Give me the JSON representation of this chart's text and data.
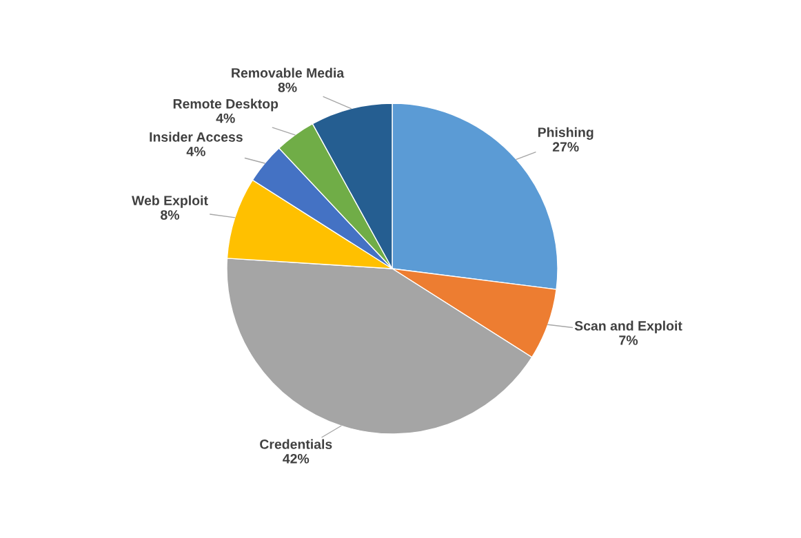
{
  "chart_data": {
    "type": "pie",
    "categories": [
      "Phishing",
      "Scan and Exploit",
      "Credentials",
      "Web Exploit",
      "Insider Access",
      "Remote Desktop",
      "Removable Media"
    ],
    "values": [
      27,
      7,
      42,
      8,
      4,
      4,
      8
    ],
    "value_labels": [
      "27%",
      "7%",
      "42%",
      "8%",
      "4%",
      "4%",
      "8%"
    ],
    "colors": [
      "#5b9bd5",
      "#ed7d31",
      "#a5a5a5",
      "#ffc000",
      "#4472c4",
      "#70ad47",
      "#255e91"
    ],
    "legend": false
  }
}
